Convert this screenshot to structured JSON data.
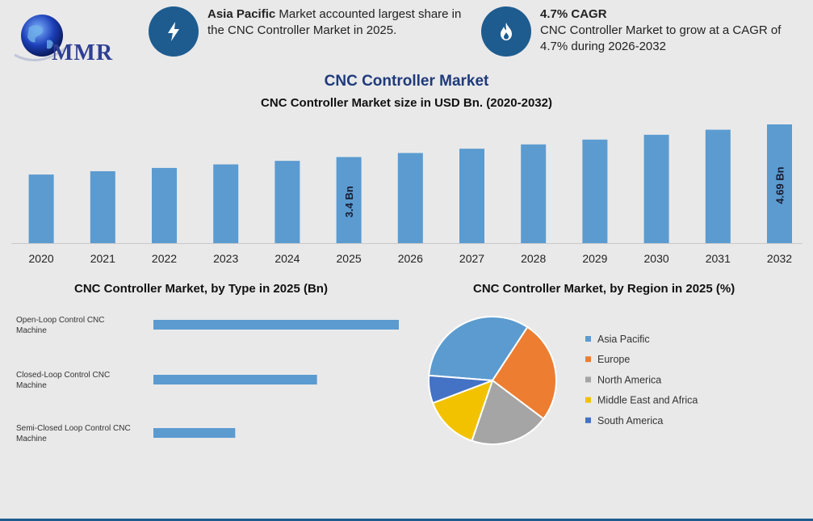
{
  "logo": {
    "text": "MMR"
  },
  "facts": [
    {
      "icon": "lightning-icon",
      "bold": "Asia Pacific",
      "text": " Market accounted largest share in the CNC Controller Market in 2025."
    },
    {
      "icon": "flame-icon",
      "bold": "4.7% CAGR",
      "text": "CNC Controller Market to grow at a CAGR of 4.7% during 2026-2032"
    }
  ],
  "header": {
    "title": "CNC Controller Market",
    "subtitle": "CNC Controller Market size in USD Bn. (2020-2032)"
  },
  "colors": {
    "bar": "#5b9bd0",
    "accent": "#1e5c8f",
    "title": "#1f3a7a"
  },
  "chart_data": [
    {
      "type": "bar",
      "title": "CNC Controller Market size in USD Bn. (2020-2032)",
      "categories": [
        "2020",
        "2021",
        "2022",
        "2023",
        "2024",
        "2025",
        "2026",
        "2027",
        "2028",
        "2029",
        "2030",
        "2031",
        "2032"
      ],
      "values": [
        2.71,
        2.84,
        2.97,
        3.11,
        3.25,
        3.4,
        3.56,
        3.73,
        3.9,
        4.09,
        4.28,
        4.48,
        4.69
      ],
      "data_labels": [
        null,
        null,
        null,
        null,
        null,
        "3.4 Bn",
        null,
        null,
        null,
        null,
        null,
        null,
        "4.69 Bn"
      ],
      "ylim": [
        0,
        4.69
      ],
      "grid": false
    },
    {
      "type": "bar",
      "orientation": "horizontal",
      "title": "CNC Controller Market, by Type in 2025 (Bn)",
      "categories": [
        "Open-Loop Control CNC Machine",
        "Closed-Loop Control CNC Machine",
        "Semi-Closed Loop Control CNC Machine"
      ],
      "values": [
        1.5,
        1.0,
        0.5
      ],
      "grid": false
    },
    {
      "type": "pie",
      "title": "CNC Controller Market, by Region in 2025 (%)",
      "legend_position": "right",
      "series": [
        {
          "name": "Asia Pacific",
          "value": 33,
          "color": "#5b9bd0"
        },
        {
          "name": "Europe",
          "value": 26,
          "color": "#ed7d31"
        },
        {
          "name": "North America",
          "value": 20,
          "color": "#a5a5a5"
        },
        {
          "name": "Middle East and Africa",
          "value": 14,
          "color": "#f2c200"
        },
        {
          "name": "South America",
          "value": 7,
          "color": "#4472c4"
        }
      ]
    }
  ]
}
